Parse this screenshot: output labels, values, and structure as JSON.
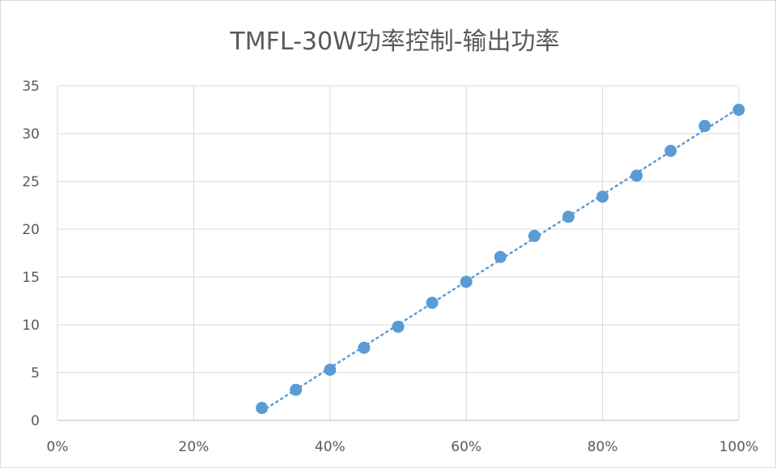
{
  "chart_data": {
    "type": "scatter",
    "title": "TMFL-30W功率控制-输出功率",
    "xlabel": "",
    "ylabel": "",
    "x_ticks": [
      "0%",
      "20%",
      "40%",
      "60%",
      "80%",
      "100%"
    ],
    "y_ticks": [
      "0",
      "5",
      "10",
      "15",
      "20",
      "25",
      "30",
      "35"
    ],
    "xlim": [
      0,
      100
    ],
    "ylim": [
      0,
      35
    ],
    "grid": true,
    "legend": "none",
    "trendline": "linear, dotted",
    "colors": {
      "point": "#5b9bd5",
      "trendline": "#5b9bd5",
      "grid": "#d9d9d9",
      "text": "#595959"
    },
    "series": [
      {
        "x": [
          30,
          35,
          40,
          45,
          50,
          55,
          60,
          65,
          70,
          75,
          80,
          85,
          90,
          95,
          100
        ],
        "y": [
          1.3,
          3.2,
          5.3,
          7.6,
          9.8,
          12.3,
          14.5,
          17.1,
          19.3,
          21.3,
          23.4,
          25.6,
          28.2,
          30.8,
          32.5
        ]
      }
    ]
  }
}
